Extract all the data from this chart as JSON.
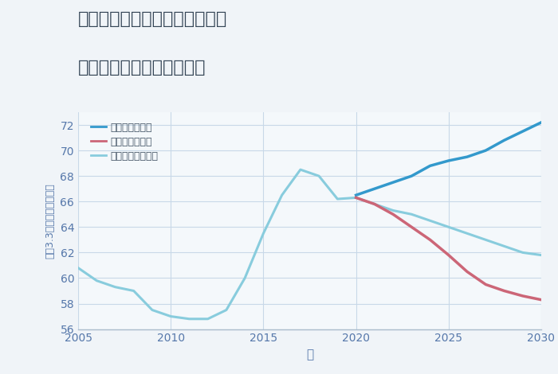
{
  "title_line1": "福岡県北九州市小倉南区湯川の",
  "title_line2": "中古マンションの価格推移",
  "xlabel": "年",
  "ylabel": "坪（3.3㎡）単価（万円）",
  "xlim": [
    2005,
    2030
  ],
  "ylim": [
    56,
    73
  ],
  "yticks": [
    56,
    58,
    60,
    62,
    64,
    66,
    68,
    70,
    72
  ],
  "xticks": [
    2005,
    2010,
    2015,
    2020,
    2025,
    2030
  ],
  "background_color": "#f0f4f8",
  "plot_bg_color": "#f4f8fb",
  "grid_color": "#c8d8e8",
  "good_scenario": {
    "label": "グッドシナリオ",
    "color": "#3399cc",
    "x": [
      2020,
      2021,
      2022,
      2023,
      2024,
      2025,
      2026,
      2027,
      2028,
      2029,
      2030
    ],
    "y": [
      66.5,
      67.0,
      67.5,
      68.0,
      68.8,
      69.2,
      69.5,
      70.0,
      70.8,
      71.5,
      72.2
    ]
  },
  "bad_scenario": {
    "label": "バッドシナリオ",
    "color": "#cc6677",
    "x": [
      2020,
      2021,
      2022,
      2023,
      2024,
      2025,
      2026,
      2027,
      2028,
      2029,
      2030
    ],
    "y": [
      66.3,
      65.8,
      65.0,
      64.0,
      63.0,
      61.8,
      60.5,
      59.5,
      59.0,
      58.6,
      58.3
    ]
  },
  "normal_scenario": {
    "label": "ノーマルシナリオ",
    "color": "#88ccdd",
    "x": [
      2005,
      2006,
      2007,
      2008,
      2009,
      2010,
      2011,
      2012,
      2013,
      2014,
      2015,
      2016,
      2017,
      2018,
      2019,
      2020,
      2021,
      2022,
      2023,
      2024,
      2025,
      2026,
      2027,
      2028,
      2029,
      2030
    ],
    "y": [
      60.8,
      59.8,
      59.3,
      59.0,
      57.5,
      57.0,
      56.8,
      56.8,
      57.5,
      60.0,
      63.5,
      66.5,
      68.5,
      68.0,
      66.2,
      66.3,
      65.8,
      65.3,
      65.0,
      64.5,
      64.0,
      63.5,
      63.0,
      62.5,
      62.0,
      61.8
    ]
  },
  "title_color": "#334455",
  "tick_color": "#5577aa",
  "label_color": "#5577aa",
  "legend_color": "#445566"
}
